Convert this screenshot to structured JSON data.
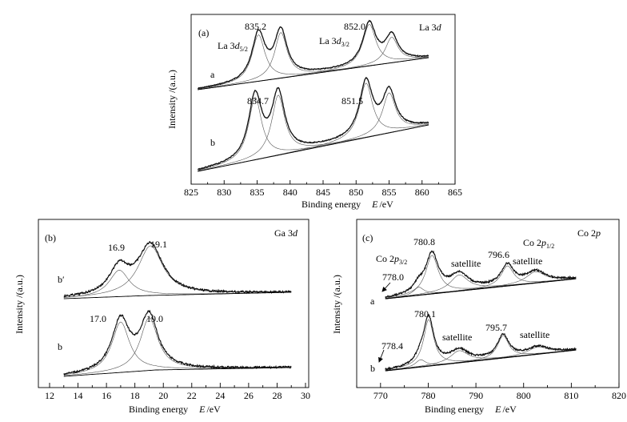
{
  "chart_data": [
    {
      "type": "line",
      "panel": "(a)",
      "title": "La 3d",
      "title_main": "La 3",
      "title_italic": "d",
      "xlabel_text": "Binding energy",
      "xlabel_sym": "E",
      "xlabel_unit": "/eV",
      "ylabel": "Intensity /(a.u.)",
      "xlim": [
        825,
        865
      ],
      "xticks": [
        825,
        830,
        835,
        840,
        845,
        850,
        855,
        860,
        865
      ],
      "series": [
        {
          "name": "a",
          "peaks": [
            835.2,
            838.6,
            852.0,
            855.4
          ],
          "heights": [
            1.0,
            1.0,
            0.95,
            0.7
          ]
        },
        {
          "name": "b",
          "peaks": [
            834.7,
            838.2,
            851.5,
            855.0
          ],
          "heights": [
            1.0,
            1.0,
            1.0,
            0.9
          ]
        }
      ],
      "peak_labels": [
        "835.2",
        "852.0",
        "834.7",
        "851.5"
      ],
      "annotations": {
        "la52_main": "La 3",
        "la52_ital": "d",
        "la52_sub": "5/2",
        "la32_main": "La 3",
        "la32_ital": "d",
        "la32_sub": "3/2"
      }
    },
    {
      "type": "line",
      "panel": "(b)",
      "title": "Ga 3d",
      "title_main": "Ga 3",
      "title_italic": "d",
      "xlabel_text": "Binding energy",
      "xlabel_sym": "E",
      "xlabel_unit": "/eV",
      "ylabel": "Intensity /(a.u.)",
      "xlim": [
        12,
        30
      ],
      "xticks": [
        12,
        13,
        14,
        15,
        16,
        17,
        18,
        19,
        20,
        21,
        22,
        23,
        24,
        25,
        26,
        27,
        28,
        29,
        30
      ],
      "xtick_labels": [
        "12",
        "14",
        "16",
        "18",
        "20",
        "22",
        "24",
        "26",
        "28",
        "30"
      ],
      "series": [
        {
          "name": "b′",
          "peaks": [
            16.9,
            19.1
          ],
          "heights": [
            0.55,
            1.0
          ]
        },
        {
          "name": "b",
          "peaks": [
            17.0,
            19.0
          ],
          "heights": [
            0.95,
            1.0
          ]
        }
      ],
      "peak_labels": [
        "16.9",
        "19.1",
        "17.0",
        "19.0"
      ]
    },
    {
      "type": "line",
      "panel": "(c)",
      "title": "Co 2p",
      "title_main": "Co 2",
      "title_italic": "p",
      "xlabel_text": "Binding energy",
      "xlabel_sym": "E",
      "xlabel_unit": "/eV",
      "ylabel": "Intensity /(a.u.)",
      "xlim": [
        765,
        820
      ],
      "xticks": [
        770,
        780,
        790,
        800,
        810,
        820
      ],
      "series": [
        {
          "name": "a",
          "peaks": [
            778.0,
            780.8,
            786.5,
            796.6,
            802.5
          ]
        },
        {
          "name": "b",
          "peaks": [
            778.4,
            780.1,
            786.5,
            795.7,
            803.0
          ]
        }
      ],
      "peak_labels": [
        "778.0",
        "780.8",
        "796.6",
        "780.1",
        "778.4",
        "795.7"
      ],
      "satellite_label": "satellite",
      "annotations": {
        "co32_main": "Co 2",
        "co32_ital": "p",
        "co32_sub": "3/2",
        "co12_main": "Co 2",
        "co12_ital": "p",
        "co12_sub": "1/2"
      }
    }
  ]
}
